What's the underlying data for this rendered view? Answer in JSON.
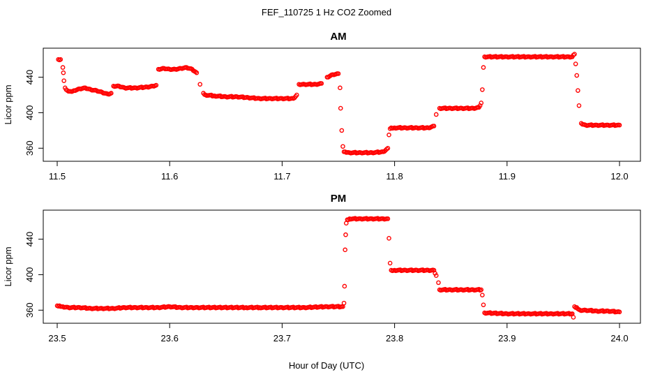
{
  "figure": {
    "title": "FEF_110725  1 Hz CO2 Zoomed",
    "xlabel": "Hour of Day (UTC)"
  },
  "colors": {
    "points": "#ff0000",
    "axis": "#000000"
  },
  "chart_data": [
    {
      "type": "scatter",
      "title": "AM",
      "xlabel": "",
      "ylabel": "Licor ppm",
      "xlim": [
        11.5,
        12.0
      ],
      "ylim": [
        350,
        468
      ],
      "xticks": [
        11.5,
        11.6,
        11.7,
        11.8,
        11.9,
        12.0
      ],
      "xtick_labels": [
        "11.5",
        "11.6",
        "11.7",
        "11.8",
        "11.9",
        "12.0"
      ],
      "yticks": [
        360,
        400,
        440
      ],
      "ytick_labels": [
        "360",
        "400",
        "440"
      ],
      "grid": false,
      "series": [
        {
          "x": [
            11.501,
            11.503,
            11.505,
            11.5055,
            11.506,
            11.507,
            11.509,
            11.512,
            11.515,
            11.52,
            11.525,
            11.53,
            11.535,
            11.54,
            11.545,
            11.548,
            11.55,
            11.555,
            11.56,
            11.57,
            11.58,
            11.585,
            11.588,
            11.59,
            11.595,
            11.6,
            11.605,
            11.61,
            11.615,
            11.62,
            11.624,
            11.627,
            11.63,
            11.632,
            11.64,
            11.65,
            11.66,
            11.67,
            11.68,
            11.69,
            11.7,
            11.71,
            11.713,
            11.715,
            11.72,
            11.73,
            11.735,
            11.74,
            11.745,
            11.75,
            11.7515,
            11.752,
            11.753,
            11.754,
            11.755,
            11.756,
            11.76,
            11.77,
            11.78,
            11.79,
            11.794,
            11.795,
            11.796,
            11.797,
            11.8,
            11.81,
            11.82,
            11.83,
            11.835,
            11.837,
            11.84,
            11.85,
            11.86,
            11.87,
            11.875,
            11.877,
            11.878,
            11.879,
            11.88,
            11.9,
            11.92,
            11.94,
            11.955,
            11.958,
            11.959,
            11.96,
            11.961,
            11.962,
            11.963,
            11.964,
            11.966,
            11.97,
            11.98,
            11.99,
            12.0
          ],
          "y": [
            460,
            460,
            451,
            445,
            436,
            428,
            425,
            424,
            425,
            427,
            428,
            426,
            425,
            423,
            421,
            422,
            430,
            430,
            428,
            428,
            429,
            430,
            431,
            449,
            450,
            449,
            449,
            450,
            451,
            449,
            445,
            432,
            422,
            420,
            419,
            418,
            418,
            417,
            416,
            416,
            416,
            416,
            420,
            432,
            432,
            432,
            433,
            440,
            443,
            444,
            428,
            405,
            380,
            362,
            356,
            356,
            355,
            355,
            355,
            356,
            360,
            375,
            382,
            383,
            383,
            383,
            383,
            383,
            385,
            398,
            405,
            405,
            405,
            405,
            406,
            411,
            426,
            451,
            463,
            463,
            463,
            463,
            463,
            463,
            465,
            466,
            455,
            442,
            425,
            408,
            388,
            386,
            386,
            386,
            386
          ]
        }
      ]
    },
    {
      "type": "scatter",
      "title": "PM",
      "xlabel": "",
      "ylabel": "Licor ppm",
      "xlim": [
        23.5,
        24.0
      ],
      "ylim": [
        350,
        468
      ],
      "xticks": [
        23.5,
        23.6,
        23.7,
        23.8,
        23.9,
        24.0
      ],
      "xtick_labels": [
        "23.5",
        "23.6",
        "23.7",
        "23.8",
        "23.9",
        "24.0"
      ],
      "yticks": [
        360,
        400,
        440
      ],
      "ytick_labels": [
        "360",
        "400",
        "440"
      ],
      "grid": false,
      "series": [
        {
          "x": [
            23.5,
            23.502,
            23.505,
            23.51,
            23.52,
            23.53,
            23.54,
            23.55,
            23.56,
            23.57,
            23.58,
            23.59,
            23.6,
            23.61,
            23.62,
            23.625,
            23.668,
            23.68,
            23.7,
            23.72,
            23.74,
            23.754,
            23.755,
            23.7555,
            23.756,
            23.7565,
            23.757,
            23.758,
            23.76,
            23.77,
            23.78,
            23.79,
            23.794,
            23.795,
            23.796,
            23.797,
            23.8,
            23.81,
            23.82,
            23.83,
            23.835,
            23.837,
            23.839,
            23.84,
            23.85,
            23.86,
            23.87,
            23.877,
            23.878,
            23.879,
            23.88,
            23.9,
            23.92,
            23.94,
            23.958,
            23.959,
            23.96,
            23.962,
            23.965,
            23.97,
            23.98,
            23.99,
            24.0
          ],
          "y": [
            365,
            365,
            364,
            363,
            363,
            362,
            362,
            362,
            363,
            363,
            363,
            363,
            364,
            363,
            363,
            363,
            363,
            363,
            363,
            363,
            364,
            364,
            368,
            387,
            428,
            445,
            458,
            462,
            463,
            463,
            463,
            463,
            463,
            441,
            413,
            405,
            405,
            405,
            405,
            405,
            405,
            399,
            391,
            383,
            383,
            383,
            383,
            383,
            377,
            366,
            357,
            356,
            356,
            356,
            356,
            352,
            364,
            363,
            360,
            360,
            359,
            359,
            358
          ]
        }
      ]
    }
  ]
}
